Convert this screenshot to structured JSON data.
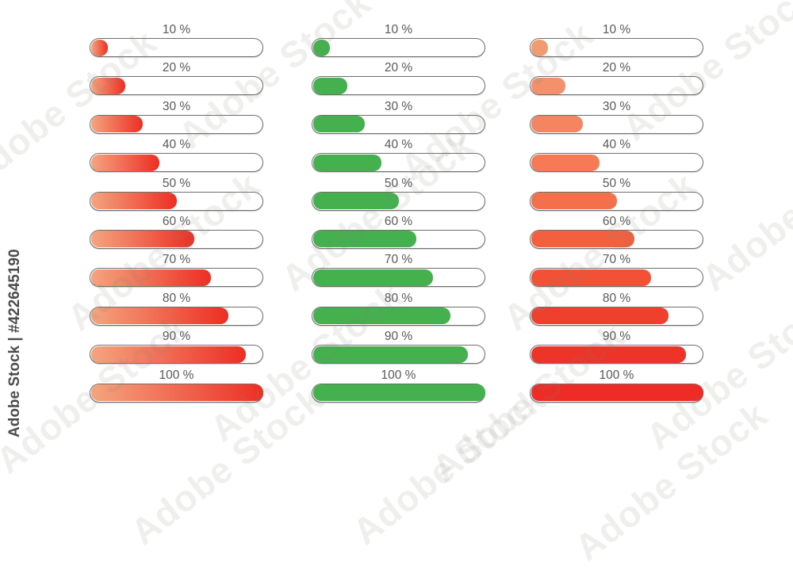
{
  "page": {
    "background": "#ffffff"
  },
  "watermark": {
    "side_text": "Adobe Stock | #422645190",
    "tile_text": "Adobe Stock",
    "side_color": "#4c4c4c"
  },
  "label_color": "#58595b",
  "track": {
    "border_color": "#6f6f6f",
    "background": "#ffffff"
  },
  "columns": [
    {
      "name": "red-gradient",
      "fill": {
        "type": "gradient",
        "from": "#f4a57e",
        "to": "#ed2e24"
      },
      "rows": [
        {
          "label": "10 %",
          "percent": 10
        },
        {
          "label": "20 %",
          "percent": 20
        },
        {
          "label": "30 %",
          "percent": 30
        },
        {
          "label": "40 %",
          "percent": 40
        },
        {
          "label": "50 %",
          "percent": 50
        },
        {
          "label": "60 %",
          "percent": 60
        },
        {
          "label": "70 %",
          "percent": 70
        },
        {
          "label": "80 %",
          "percent": 80
        },
        {
          "label": "90 %",
          "percent": 90
        },
        {
          "label": "100 %",
          "percent": 100
        }
      ]
    },
    {
      "name": "green-solid",
      "fill": {
        "type": "solid",
        "color": "#44b04e"
      },
      "rows": [
        {
          "label": "10 %",
          "percent": 10
        },
        {
          "label": "20 %",
          "percent": 20
        },
        {
          "label": "30 %",
          "percent": 30
        },
        {
          "label": "40 %",
          "percent": 40
        },
        {
          "label": "50 %",
          "percent": 50
        },
        {
          "label": "60 %",
          "percent": 60
        },
        {
          "label": "70 %",
          "percent": 70
        },
        {
          "label": "80 %",
          "percent": 80
        },
        {
          "label": "90 %",
          "percent": 90
        },
        {
          "label": "100 %",
          "percent": 100
        }
      ]
    },
    {
      "name": "orange-to-red",
      "fill": {
        "type": "per_row"
      },
      "rows": [
        {
          "label": "10 %",
          "percent": 10,
          "color": "#f19b72"
        },
        {
          "label": "20 %",
          "percent": 20,
          "color": "#f4906a"
        },
        {
          "label": "30 %",
          "percent": 30,
          "color": "#f58560"
        },
        {
          "label": "40 %",
          "percent": 40,
          "color": "#f57a55"
        },
        {
          "label": "50 %",
          "percent": 50,
          "color": "#f46f4b"
        },
        {
          "label": "60 %",
          "percent": 60,
          "color": "#f4603f"
        },
        {
          "label": "70 %",
          "percent": 70,
          "color": "#f25137"
        },
        {
          "label": "80 %",
          "percent": 80,
          "color": "#ef402e"
        },
        {
          "label": "90 %",
          "percent": 90,
          "color": "#ee3328"
        },
        {
          "label": "100 %",
          "percent": 100,
          "color": "#ee2b24"
        }
      ]
    }
  ]
}
